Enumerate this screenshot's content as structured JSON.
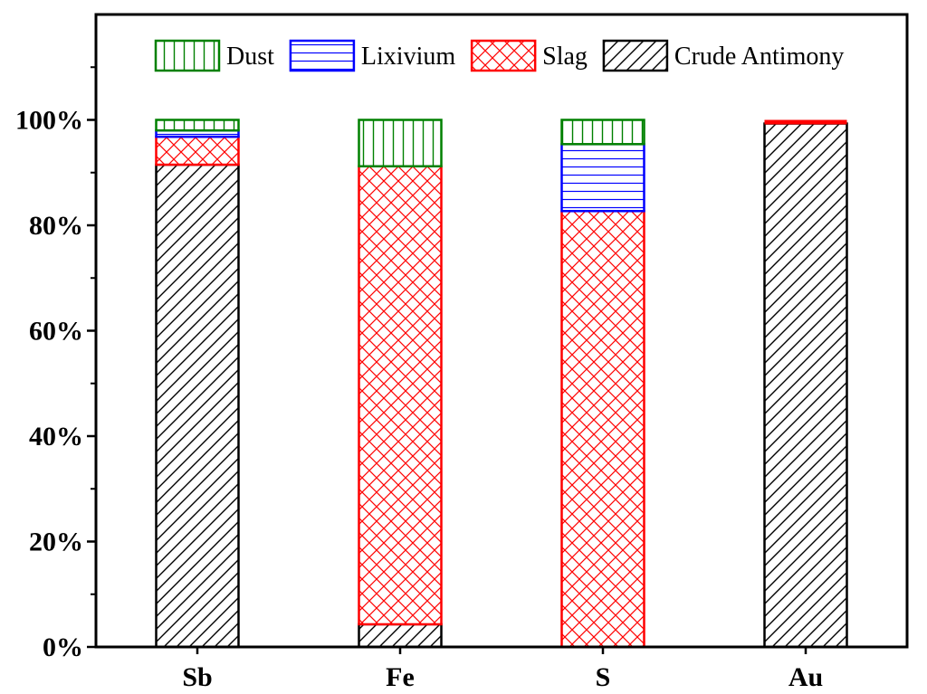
{
  "chart_data": {
    "type": "bar",
    "stacked": true,
    "title": "",
    "xlabel": "",
    "ylabel": "",
    "categories": [
      "Sb",
      "Fe",
      "S",
      "Au"
    ],
    "ylim": [
      0,
      1.2
    ],
    "yticks": [
      0,
      0.2,
      0.4,
      0.6,
      0.8,
      1.0
    ],
    "ytick_labels": [
      "0%",
      "20%",
      "40%",
      "60%",
      "80%",
      "100%"
    ],
    "grid": false,
    "legend_position": "top",
    "series": [
      {
        "name": "Crude Antimony",
        "values": [
          0.915,
          0.043,
          0.0,
          0.993
        ],
        "color": "#000000",
        "pattern": "diagonal"
      },
      {
        "name": "Slag",
        "values": [
          0.053,
          0.869,
          0.827,
          0.007
        ],
        "color": "#ff0000",
        "pattern": "crosshatch"
      },
      {
        "name": "Lixivium",
        "values": [
          0.012,
          0.0,
          0.127,
          0.0
        ],
        "color": "#0000ff",
        "pattern": "horizontal"
      },
      {
        "name": "Dust",
        "values": [
          0.02,
          0.088,
          0.046,
          0.0
        ],
        "color": "#008000",
        "pattern": "vertical"
      }
    ],
    "legend_order": [
      "Dust",
      "Lixivium",
      "Slag",
      "Crude Antimony"
    ]
  }
}
